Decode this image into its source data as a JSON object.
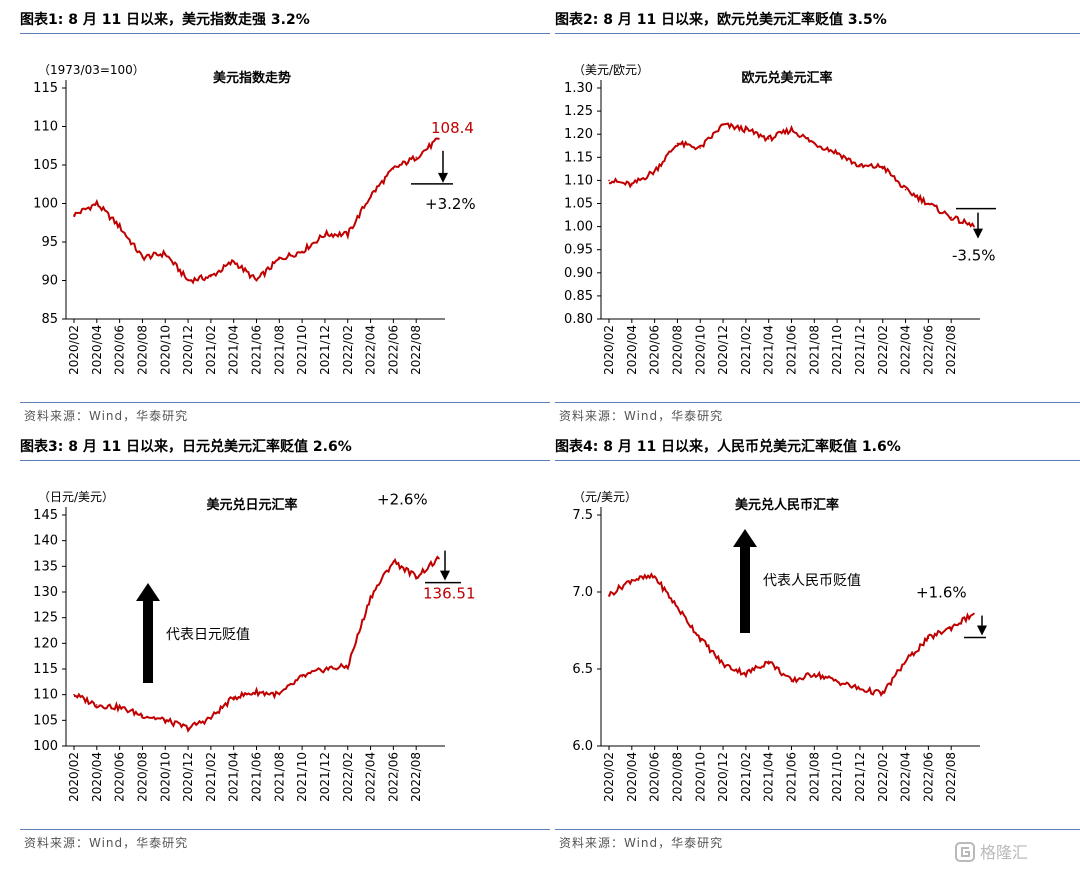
{
  "source_text": "资料来源：Wind，华泰研究",
  "watermark": {
    "text": "格隆汇",
    "icon": "logo-g-icon"
  },
  "line_color": "#c00000",
  "charts": [
    {
      "panel_title": "图表1:   8 月 11 日以来，美元指数走强 3.2%",
      "unit": "（1973/03=100）",
      "title": "美元指数走势",
      "yticks": [
        "115",
        "110",
        "105",
        "100",
        "95",
        "90",
        "85"
      ],
      "xticks": [
        "2020/02",
        "2020/04",
        "2020/06",
        "2020/08",
        "2020/10",
        "2020/12",
        "2021/02",
        "2021/04",
        "2021/06",
        "2021/08",
        "2021/10",
        "2021/12",
        "2022/02",
        "2022/04",
        "2022/06",
        "2022/08"
      ],
      "annotations": {
        "last_value": "108.4",
        "change": "+3.2%"
      },
      "arrow_label": ""
    },
    {
      "panel_title": "图表2:   8 月 11 日以来，欧元兑美元汇率贬值 3.5%",
      "unit": "（美元/欧元）",
      "title": "欧元兑美元汇率",
      "yticks": [
        "1.30",
        "1.25",
        "1.20",
        "1.15",
        "1.10",
        "1.05",
        "1.00",
        "0.95",
        "0.90",
        "0.85",
        "0.80"
      ],
      "xticks": [
        "2020/02",
        "2020/04",
        "2020/06",
        "2020/08",
        "2020/10",
        "2020/12",
        "2021/02",
        "2021/04",
        "2021/06",
        "2021/08",
        "2021/10",
        "2021/12",
        "2022/02",
        "2022/04",
        "2022/06",
        "2022/08"
      ],
      "annotations": {
        "change": "-3.5%"
      },
      "arrow_label": ""
    },
    {
      "panel_title": "图表3:   8 月 11 日以来，日元兑美元汇率贬值 2.6%",
      "unit": "（日元/美元）",
      "title": "美元兑日元汇率",
      "yticks": [
        "145",
        "140",
        "135",
        "130",
        "125",
        "120",
        "115",
        "110",
        "105",
        "100"
      ],
      "xticks": [
        "2020/02",
        "2020/04",
        "2020/06",
        "2020/08",
        "2020/10",
        "2020/12",
        "2021/02",
        "2021/04",
        "2021/06",
        "2021/08",
        "2021/10",
        "2021/12",
        "2022/02",
        "2022/04",
        "2022/06",
        "2022/08"
      ],
      "annotations": {
        "change": "+2.6%",
        "last_value": "136.51"
      },
      "arrow_label": "代表日元贬值"
    },
    {
      "panel_title": "图表4:   8 月 11 日以来，人民币兑美元汇率贬值 1.6%",
      "unit": "（元/美元）",
      "title": "美元兑人民币汇率",
      "yticks": [
        "7.5",
        "7.0",
        "6.5",
        "6.0"
      ],
      "xticks": [
        "2020/02",
        "2020/04",
        "2020/06",
        "2020/08",
        "2020/10",
        "2020/12",
        "2021/02",
        "2021/04",
        "2021/06",
        "2021/08",
        "2021/10",
        "2021/12",
        "2022/02",
        "2022/04",
        "2022/06",
        "2022/08"
      ],
      "annotations": {
        "change": "+1.6%"
      },
      "arrow_label": "代表人民币贬值"
    }
  ],
  "chart_data": [
    {
      "type": "line",
      "title": "美元指数走势",
      "ylabel": "（1973/03=100）",
      "ylim": [
        85,
        115
      ],
      "x": [
        "2020/02",
        "2020/04",
        "2020/06",
        "2020/08",
        "2020/10",
        "2020/12",
        "2021/02",
        "2021/04",
        "2021/06",
        "2021/08",
        "2021/10",
        "2021/12",
        "2022/02",
        "2022/04",
        "2022/06",
        "2022/08",
        "2022/09"
      ],
      "values": [
        98.5,
        100.0,
        97.0,
        93.0,
        93.5,
        90.0,
        90.5,
        92.5,
        90.0,
        92.8,
        93.8,
        96.0,
        96.0,
        101.0,
        104.5,
        106.0,
        108.4
      ]
    },
    {
      "type": "line",
      "title": "欧元兑美元汇率",
      "ylabel": "（美元/欧元）",
      "ylim": [
        0.8,
        1.3
      ],
      "x": [
        "2020/02",
        "2020/04",
        "2020/06",
        "2020/08",
        "2020/10",
        "2020/12",
        "2021/02",
        "2021/04",
        "2021/06",
        "2021/08",
        "2021/10",
        "2021/12",
        "2022/02",
        "2022/04",
        "2022/06",
        "2022/08",
        "2022/09"
      ],
      "values": [
        1.1,
        1.09,
        1.12,
        1.18,
        1.17,
        1.22,
        1.21,
        1.19,
        1.21,
        1.18,
        1.16,
        1.13,
        1.13,
        1.08,
        1.05,
        1.02,
        1.0
      ]
    },
    {
      "type": "line",
      "title": "美元兑日元汇率",
      "ylabel": "（日元/美元）",
      "ylim": [
        100,
        145
      ],
      "x": [
        "2020/02",
        "2020/04",
        "2020/06",
        "2020/08",
        "2020/10",
        "2020/12",
        "2021/02",
        "2021/04",
        "2021/06",
        "2021/08",
        "2021/10",
        "2021/12",
        "2022/02",
        "2022/04",
        "2022/06",
        "2022/08",
        "2022/09"
      ],
      "values": [
        110.0,
        108.0,
        107.5,
        106.0,
        105.0,
        103.5,
        105.5,
        109.5,
        110.5,
        110.0,
        113.5,
        115.0,
        115.5,
        129.0,
        136.0,
        133.0,
        136.51
      ]
    },
    {
      "type": "line",
      "title": "美元兑人民币汇率",
      "ylabel": "（元/美元）",
      "ylim": [
        6.0,
        7.5
      ],
      "x": [
        "2020/02",
        "2020/04",
        "2020/06",
        "2020/08",
        "2020/10",
        "2020/12",
        "2021/02",
        "2021/04",
        "2021/06",
        "2021/08",
        "2021/10",
        "2021/12",
        "2022/02",
        "2022/04",
        "2022/06",
        "2022/08",
        "2022/09"
      ],
      "values": [
        6.98,
        7.08,
        7.1,
        6.9,
        6.7,
        6.53,
        6.47,
        6.55,
        6.42,
        6.47,
        6.42,
        6.37,
        6.34,
        6.55,
        6.7,
        6.77,
        6.86
      ]
    }
  ]
}
